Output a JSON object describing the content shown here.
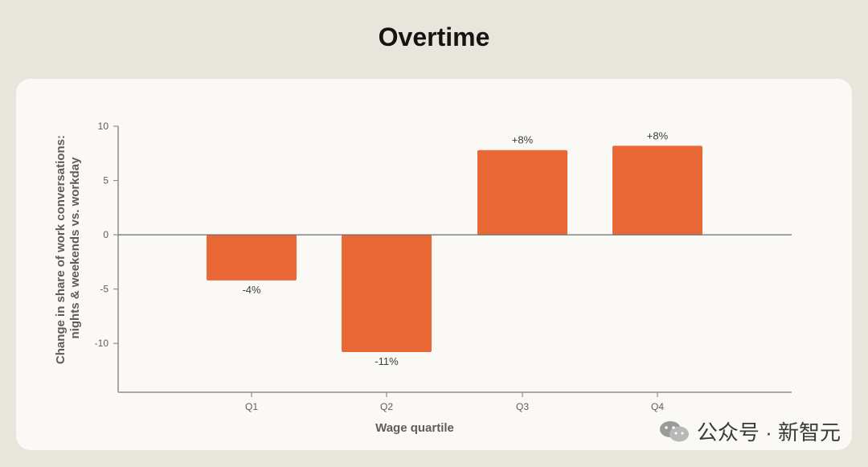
{
  "title": "Overtime",
  "watermark": "公众号 · 新智元",
  "chart_data": {
    "type": "bar",
    "categories": [
      "Q1",
      "Q2",
      "Q3",
      "Q4"
    ],
    "values": [
      -4.2,
      -10.8,
      7.8,
      8.2
    ],
    "data_labels": [
      "-4%",
      "-11%",
      "+8%",
      "+8%"
    ],
    "xlabel": "Wage quartile",
    "ylabel_lines": [
      "Change in share of work conversations:",
      "nights & weekends vs. workday"
    ],
    "ylim": [
      -14.5,
      10
    ],
    "yticks": [
      10,
      5,
      0,
      -5,
      -10
    ],
    "ytick_labels": [
      "10",
      "5",
      "0",
      "-5",
      "-10"
    ],
    "grid": false,
    "bar_color": "#e96836",
    "axis_color": "#8f8e88"
  }
}
